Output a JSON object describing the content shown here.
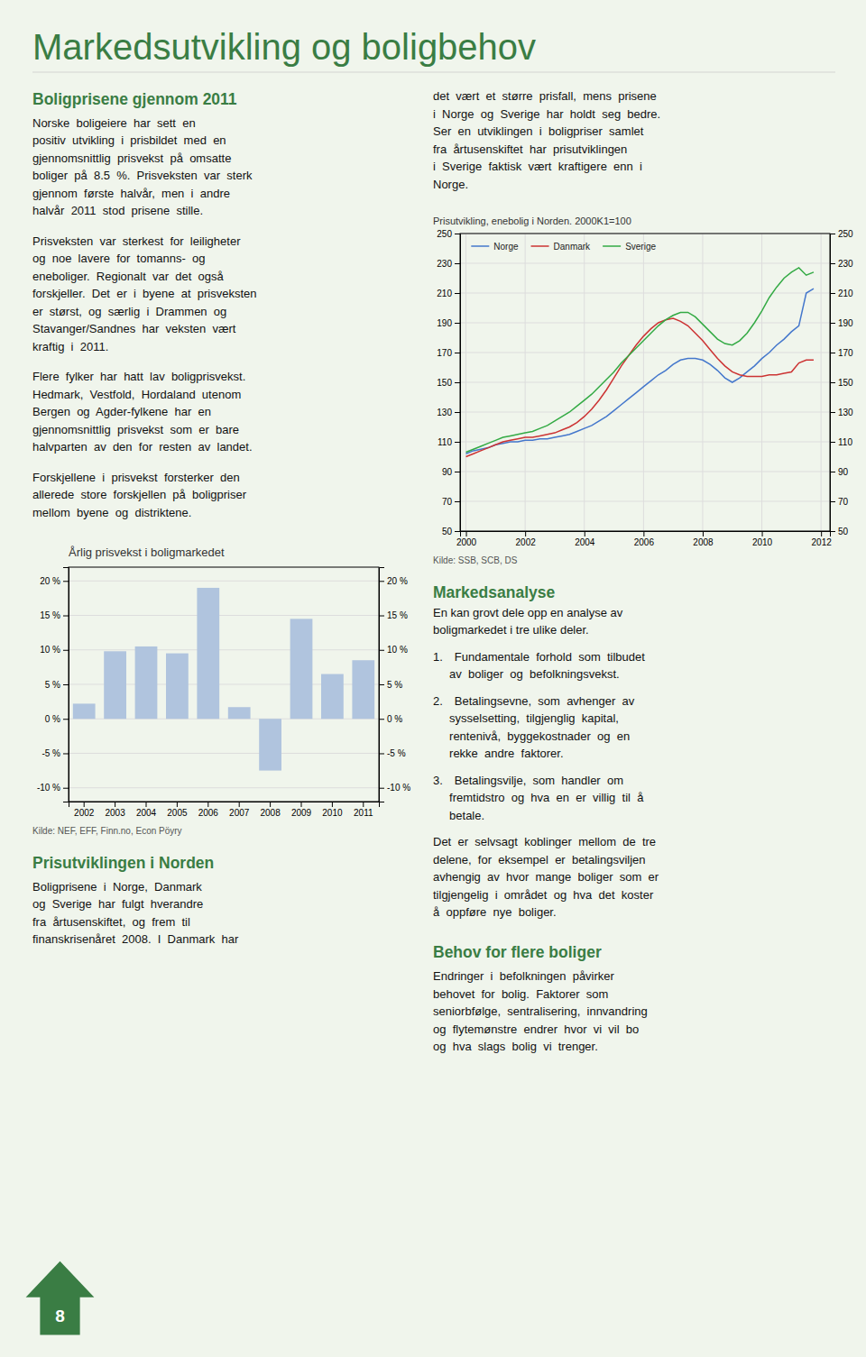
{
  "page": {
    "title": "Markedsutvikling og boligbehov",
    "color": "#3a7d44",
    "background": "#f0f5ec",
    "page_number": "8",
    "texts": [
      {
        "heading": "Boligprisene gjennom 2011"
      },
      {
        "lines": [
          "Norske  boligeiere  har  sett  en",
          "positiv  utvikling  i  prisbildet  med  en",
          "gjennomsnittlig  prisvekst  på  omsatte",
          "boliger  på  8.5  %.  Prisveksten  var  sterk",
          "gjennom  første  halvår,  men  i  andre",
          "halvår  2011  stod  prisene  stille."
        ]
      },
      {
        "lines": [
          "Prisveksten  var  sterkest  for  leiligheter",
          "og  noe  lavere  for  tomanns-  og",
          "eneboliger.  Regionalt  var  det  også",
          "forskjeller.  Det  er  i  byene  at  prisveksten",
          "er  størst,  og  særlig  i  Drammen  og",
          "Stavanger/Sandnes  har  veksten  vært",
          "kraftig  i  2011."
        ]
      },
      {
        "lines": [
          "Flere  fylker  har  hatt  lav  boligprisvekst.",
          "Hedmark,  Vestfold,  Hordaland  utenom",
          "Bergen  og  Agder-fylkene  har  en",
          "gjennomsnittlig  prisvekst  som  er  bare",
          "halvparten  av  den  for  resten  av  landet."
        ]
      },
      {
        "lines": [
          "Forskjellene  i  prisvekst  forsterker  den",
          "allerede  store  forskjellen  på  boligpriser",
          "mellom  byene  og  distriktene."
        ]
      },
      {
        "lines": [
          "det  vært  et  større  prisfall,  mens  prisene",
          "i  Norge  og  Sverige  har  holdt  seg  bedre.",
          "Ser  en  utviklingen  i  boligpriser  samlet",
          "fra  årtusenskiftet  har  prisutviklingen",
          "i  Sverige  faktisk  vært  kraftigere  enn  i",
          "Norge."
        ]
      },
      {
        "heading": "Markedsanalyse"
      },
      {
        "lines": [
          "En kan grovt dele opp en analyse av",
          "boligmarkedet i tre ulike deler."
        ]
      },
      {
        "lines": [
          "1. Fundamentale  forhold  som  tilbudet",
          "     av  boliger  og  befolkningsvekst."
        ]
      },
      {
        "lines": [
          "2. Betalingsevne,  som  avhenger  av",
          "     sysselsetting,  tilgjenglig  kapital,",
          "     rentenivå,  byggekostnader  og  en",
          "     rekke  andre  faktorer."
        ]
      },
      {
        "lines": [
          "3. Betalingsvilje,  som  handler  om",
          "     fremtidstro  og  hva  en  er  villig  til  å",
          "     betale."
        ]
      },
      {
        "lines": [
          "Det  er  selvsagt  koblinger  mellom  de  tre",
          "delene,  for  eksempel  er  betalingsviljen",
          "avhengig  av  hvor  mange  boliger  som  er",
          "tilgjengelig  i  området  og  hva  det  koster",
          "å  oppføre  nye  boliger."
        ]
      },
      {
        "heading": "Prisutviklingen i Norden"
      },
      {
        "lines": [
          "Boligprisene  i  Norge,  Danmark",
          "og  Sverige  har  fulgt  hverandre",
          "fra  årtusenskiftet,  og  frem  til",
          "finanskrisenåret  2008.  I  Danmark  har"
        ]
      },
      {
        "heading": "Behov for flere boliger"
      },
      {
        "lines": [
          "Endringer  i  befolkningen  påvirker",
          "behovet  for  bolig.  Faktorer  som",
          "seniorbfølge,  sentralisering,  innvandring",
          "og  flytemønstre  endrer  hvor  vi  vil  bo",
          "og  hva  slags  bolig  vi  trenger."
        ]
      }
    ]
  },
  "chart_data": [
    {
      "type": "line",
      "title": "Prisutvikling, enebolig i Norden. 2000K1=100",
      "source": "Kilde: SSB, SCB, DS",
      "x": [
        2000,
        2000.25,
        2000.5,
        2000.75,
        2001,
        2001.25,
        2001.5,
        2001.75,
        2002,
        2002.25,
        2002.5,
        2002.75,
        2003,
        2003.25,
        2003.5,
        2003.75,
        2004,
        2004.25,
        2004.5,
        2004.75,
        2005,
        2005.25,
        2005.5,
        2005.75,
        2006,
        2006.25,
        2006.5,
        2006.75,
        2007,
        2007.25,
        2007.5,
        2007.75,
        2008,
        2008.25,
        2008.5,
        2008.75,
        2009,
        2009.25,
        2009.5,
        2009.75,
        2010,
        2010.25,
        2010.5,
        2010.75,
        2011,
        2011.25,
        2011.5,
        2011.75
      ],
      "xlim": [
        1999.8,
        2012.3
      ],
      "xticks": [
        2000,
        2002,
        2004,
        2006,
        2008,
        2010,
        2012
      ],
      "ylim": [
        50,
        250
      ],
      "yticks": [
        50,
        70,
        90,
        110,
        130,
        150,
        170,
        190,
        210,
        230,
        250
      ],
      "grid": true,
      "legend": "upper left",
      "series": [
        {
          "name": "Norge",
          "color": "#4477cc",
          "values": [
            102,
            104,
            105,
            106,
            108,
            109,
            110,
            110,
            111,
            111,
            112,
            112,
            113,
            114,
            115,
            117,
            119,
            121,
            124,
            127,
            131,
            135,
            139,
            143,
            147,
            151,
            155,
            158,
            162,
            165,
            166,
            166,
            165,
            162,
            158,
            153,
            150,
            153,
            157,
            161,
            166,
            170,
            175,
            179,
            184,
            188,
            210,
            213
          ]
        },
        {
          "name": "Danmark",
          "color": "#cc3333",
          "values": [
            100,
            102,
            104,
            106,
            108,
            110,
            111,
            112,
            113,
            113,
            114,
            115,
            116,
            118,
            120,
            123,
            127,
            132,
            138,
            145,
            153,
            161,
            168,
            175,
            181,
            186,
            190,
            192,
            193,
            191,
            188,
            183,
            178,
            172,
            166,
            161,
            157,
            155,
            154,
            154,
            154,
            155,
            155,
            156,
            157,
            163,
            165,
            165
          ]
        },
        {
          "name": "Sverige",
          "color": "#33aa44",
          "values": [
            103,
            105,
            107,
            109,
            111,
            113,
            114,
            115,
            116,
            117,
            119,
            121,
            124,
            127,
            130,
            134,
            138,
            142,
            147,
            152,
            157,
            163,
            168,
            173,
            178,
            183,
            188,
            192,
            195,
            197,
            197,
            194,
            189,
            184,
            179,
            176,
            175,
            178,
            183,
            190,
            198,
            207,
            214,
            220,
            224,
            227,
            222,
            224
          ]
        }
      ]
    },
    {
      "type": "bar",
      "title": "Årlig prisvekst i boligmarkedet",
      "source": "Kilde: NEF, EFF, Finn.no, Econ Pöyry",
      "categories": [
        "2002",
        "2003",
        "2004",
        "2005",
        "2006",
        "2007",
        "2008",
        "2009",
        "2010",
        "2011"
      ],
      "values": [
        2.2,
        9.8,
        10.5,
        9.5,
        19.0,
        1.7,
        -7.5,
        14.5,
        6.5,
        8.5
      ],
      "color": "#b0c4de",
      "ylim": [
        -12,
        22
      ],
      "yticks": [
        {
          "value": -10,
          "label": "-10 %"
        },
        {
          "value": -5,
          "label": "-5 %"
        },
        {
          "value": 0,
          "label": "0 %"
        },
        {
          "value": 5,
          "label": "5 %"
        },
        {
          "value": 10,
          "label": "10 %"
        },
        {
          "value": 15,
          "label": "15 %"
        },
        {
          "value": 20,
          "label": "20 %"
        }
      ],
      "grid": "y"
    }
  ]
}
